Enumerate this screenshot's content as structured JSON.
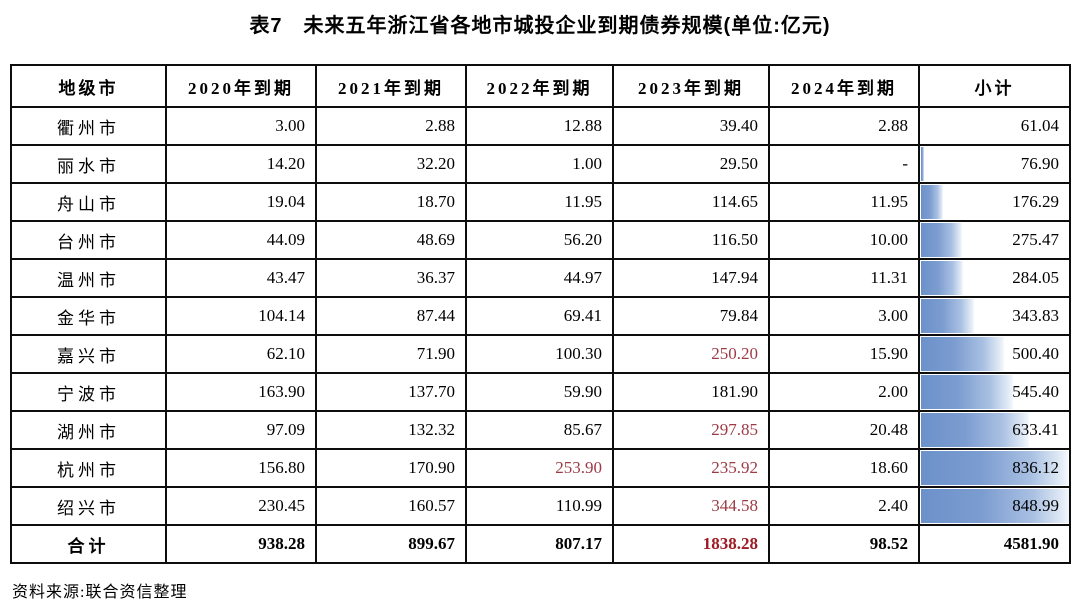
{
  "title": "表7　未来五年浙江省各地市城投企业到期债券规模(单位:亿元)",
  "source": "资料来源:联合资信整理",
  "colors": {
    "highlight_bg": "#fbc9ce",
    "highlight_text": "#9c3a45",
    "total_highlight_text": "#9e1b23",
    "databar_blue": "#6c91ca",
    "border": "#0d0d0d"
  },
  "chart_data": {
    "type": "table",
    "title": "表7 未来五年浙江省各地市城投企业到期债券规模(单位:亿元)",
    "unit": "亿元",
    "columns": [
      "地级市",
      "2020年到期",
      "2021年到期",
      "2022年到期",
      "2023年到期",
      "2024年到期",
      "小计"
    ],
    "rows": [
      {
        "city": "衢州市",
        "values": [
          "3.00",
          "2.88",
          "12.88",
          "39.40",
          "2.88"
        ],
        "subtotal": "61.04",
        "highlight": []
      },
      {
        "city": "丽水市",
        "values": [
          "14.20",
          "32.20",
          "1.00",
          "29.50",
          "-"
        ],
        "subtotal": "76.90",
        "highlight": []
      },
      {
        "city": "舟山市",
        "values": [
          "19.04",
          "18.70",
          "11.95",
          "114.65",
          "11.95"
        ],
        "subtotal": "176.29",
        "highlight": []
      },
      {
        "city": "台州市",
        "values": [
          "44.09",
          "48.69",
          "56.20",
          "116.50",
          "10.00"
        ],
        "subtotal": "275.47",
        "highlight": []
      },
      {
        "city": "温州市",
        "values": [
          "43.47",
          "36.37",
          "44.97",
          "147.94",
          "11.31"
        ],
        "subtotal": "284.05",
        "highlight": []
      },
      {
        "city": "金华市",
        "values": [
          "104.14",
          "87.44",
          "69.41",
          "79.84",
          "3.00"
        ],
        "subtotal": "343.83",
        "highlight": []
      },
      {
        "city": "嘉兴市",
        "values": [
          "62.10",
          "71.90",
          "100.30",
          "250.20",
          "15.90"
        ],
        "subtotal": "500.40",
        "highlight": [
          3
        ]
      },
      {
        "city": "宁波市",
        "values": [
          "163.90",
          "137.70",
          "59.90",
          "181.90",
          "2.00"
        ],
        "subtotal": "545.40",
        "highlight": []
      },
      {
        "city": "湖州市",
        "values": [
          "97.09",
          "132.32",
          "85.67",
          "297.85",
          "20.48"
        ],
        "subtotal": "633.41",
        "highlight": [
          3
        ]
      },
      {
        "city": "杭州市",
        "values": [
          "156.80",
          "170.90",
          "253.90",
          "235.92",
          "18.60"
        ],
        "subtotal": "836.12",
        "highlight": [
          2,
          3
        ]
      },
      {
        "city": "绍兴市",
        "values": [
          "230.45",
          "160.57",
          "110.99",
          "344.58",
          "2.40"
        ],
        "subtotal": "848.99",
        "highlight": [
          3
        ]
      }
    ],
    "total_row": {
      "city": "合计",
      "values": [
        "938.28",
        "899.67",
        "807.17",
        "1838.28",
        "98.52"
      ],
      "subtotal": "4581.90",
      "highlight": [
        3
      ]
    },
    "bar_scale": {
      "min": 61.04,
      "max": 848.99
    },
    "layout": {
      "databar_column": "小计",
      "databar_style": "blue-gradient-left-to-right"
    }
  }
}
